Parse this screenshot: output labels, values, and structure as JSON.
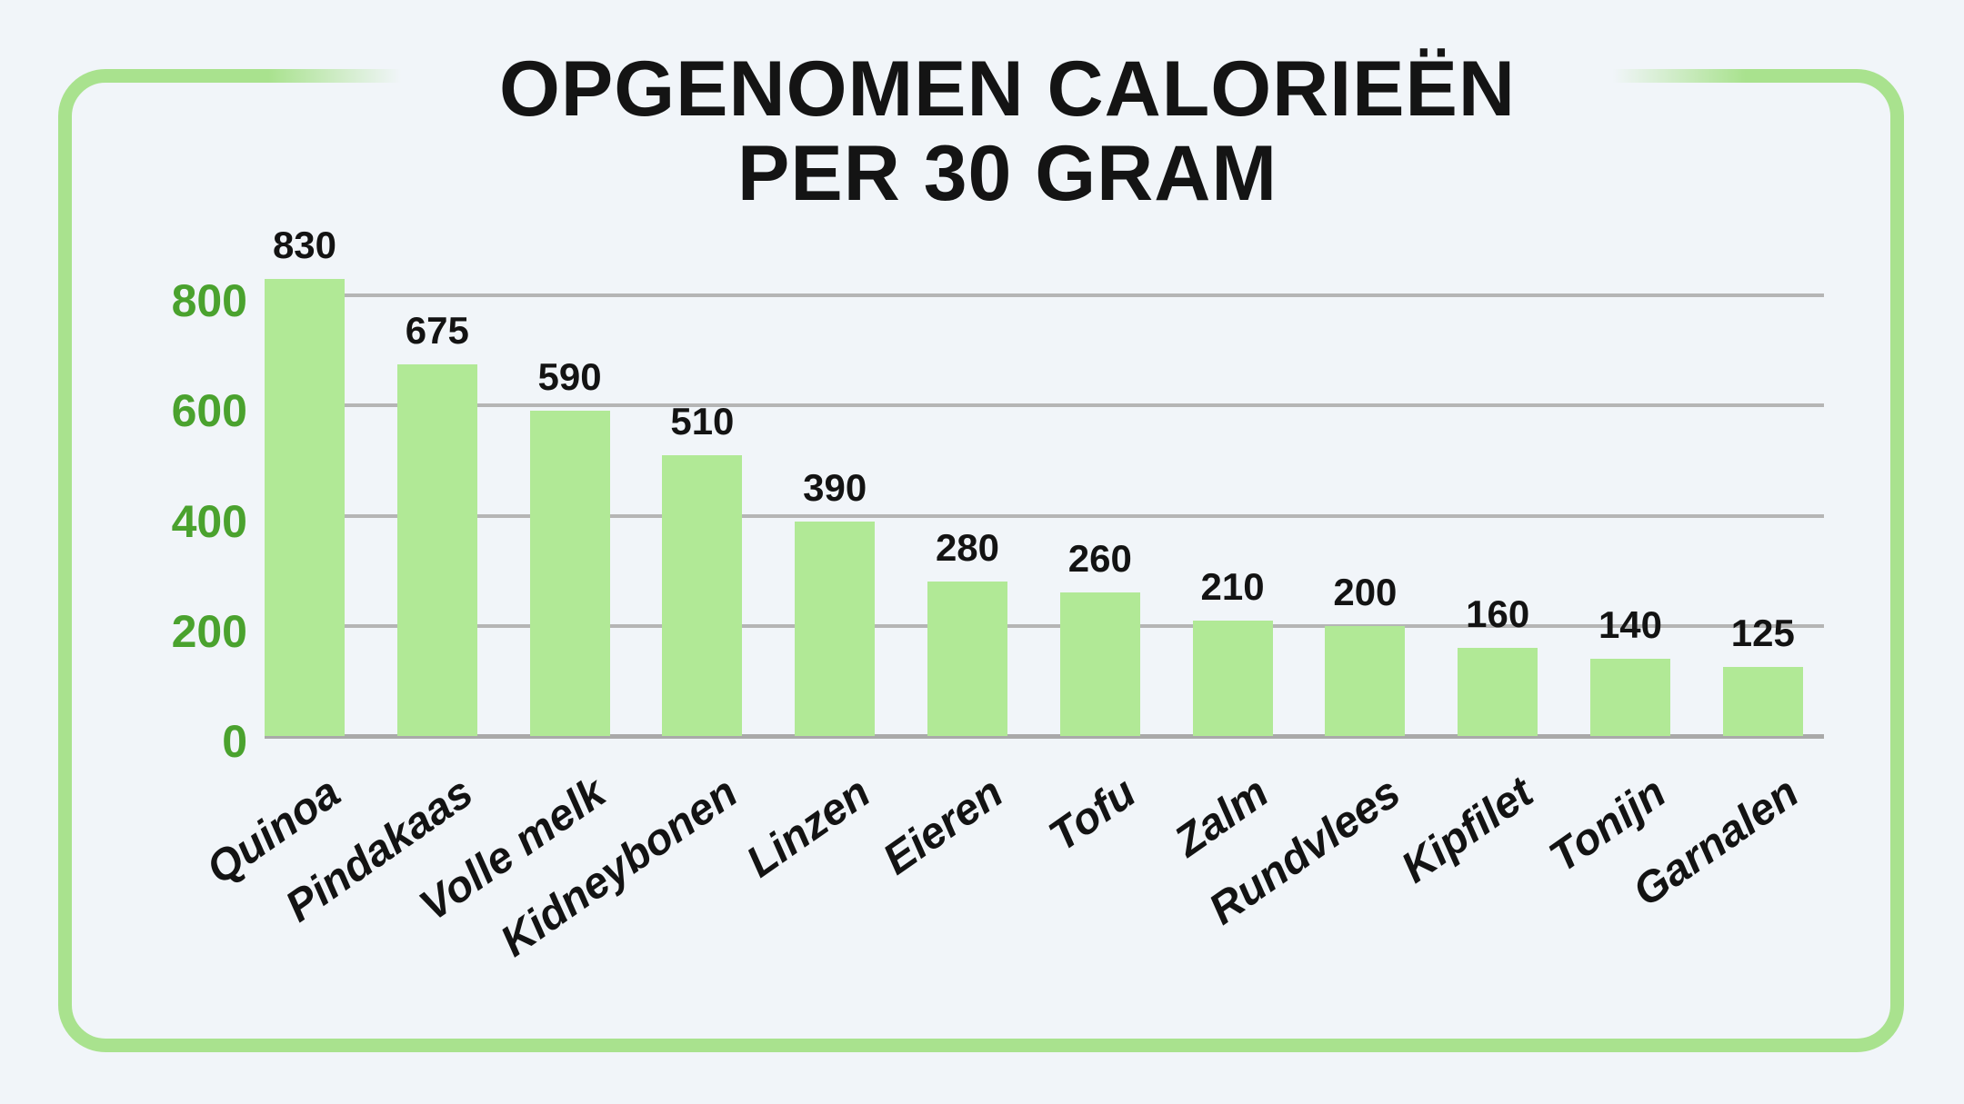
{
  "page": {
    "background_color": "#f1f5f9",
    "frame_border_color": "#a9e28e"
  },
  "title": {
    "line1": "OPGENOMEN CALORIEËN",
    "line2": "PER 30 GRAM",
    "color": "#141414"
  },
  "chart_data": {
    "type": "bar",
    "title": "OPGENOMEN CALORIEËN PER 30 GRAM",
    "categories": [
      "Quinoa",
      "Pindakaas",
      "Volle melk",
      "Kidneybonen",
      "Linzen",
      "Eieren",
      "Tofu",
      "Zalm",
      "Rundvlees",
      "Kipfilet",
      "Tonijn",
      "Garnalen"
    ],
    "values": [
      830,
      675,
      590,
      510,
      390,
      280,
      260,
      210,
      200,
      160,
      140,
      125
    ],
    "value_labels": [
      "830",
      "675",
      "590",
      "510",
      "390",
      "280",
      "260",
      "210",
      "200",
      "160",
      "140",
      "125"
    ],
    "xlabel": "",
    "ylabel": "",
    "y_ticks": [
      "0",
      "200",
      "400",
      "600",
      "800"
    ],
    "y_tick_values": [
      0,
      200,
      400,
      600,
      800
    ],
    "ylim": [
      0,
      900
    ],
    "grid": "horizontal-only",
    "legend": "none",
    "bar_color": "#b1e996",
    "gridline_color": "#b5b5b5",
    "baseline_color": "#a9a9a9",
    "ytick_color": "#4aa22e",
    "value_label_color": "#131313",
    "category_label_color": "#131313"
  }
}
